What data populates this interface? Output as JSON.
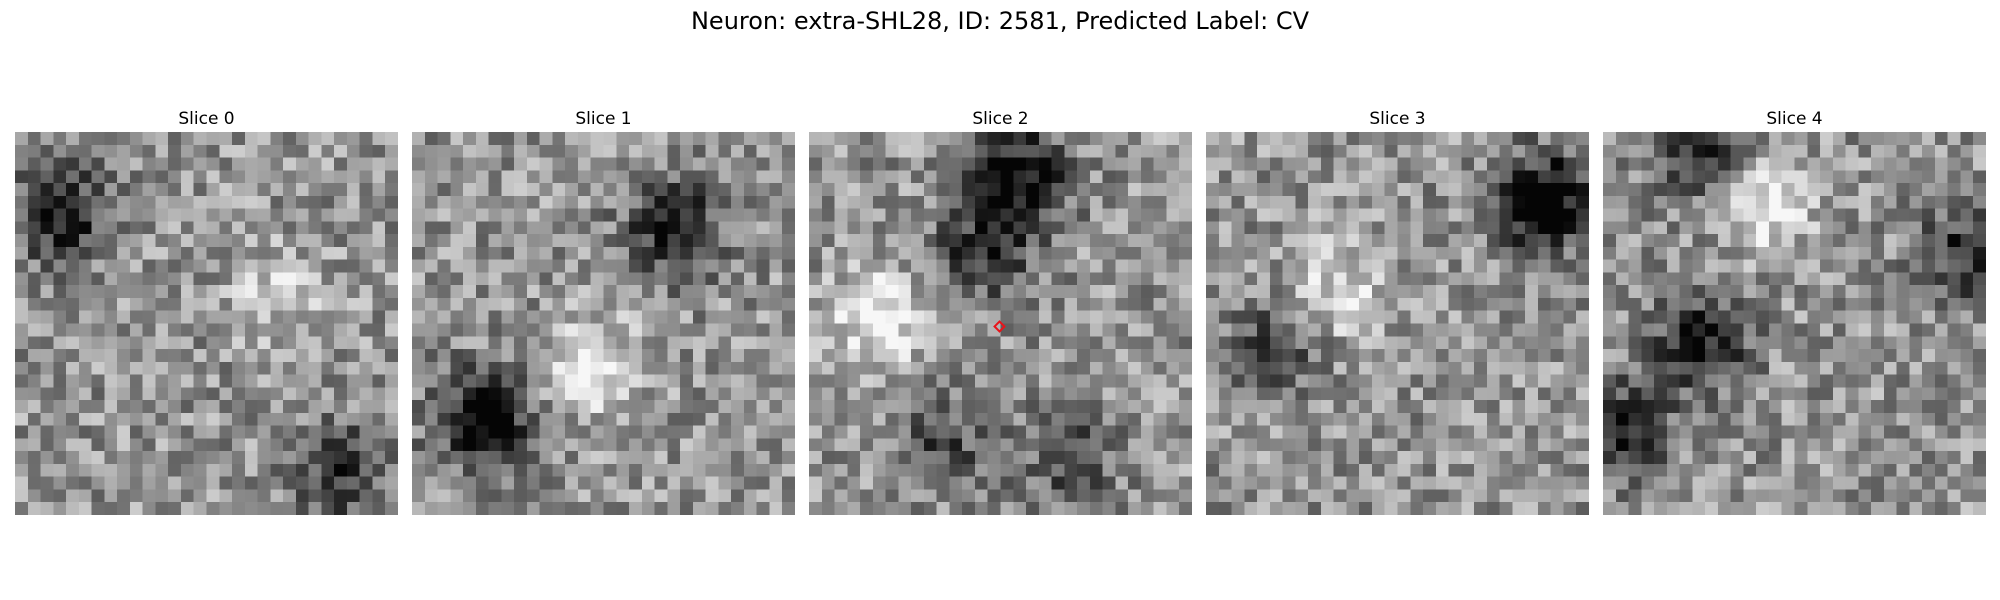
{
  "figure": {
    "suptitle": "Neuron: extra-SHL28, ID: 2581, Predicted Label: CV",
    "panels": [
      {
        "title": "Slice 0"
      },
      {
        "title": "Slice 1"
      },
      {
        "title": "Slice 2",
        "marker": true
      },
      {
        "title": "Slice 3"
      },
      {
        "title": "Slice 4"
      }
    ],
    "colormap": "gray",
    "marker_color": "#e8141a",
    "marker_shape": "diamond"
  }
}
